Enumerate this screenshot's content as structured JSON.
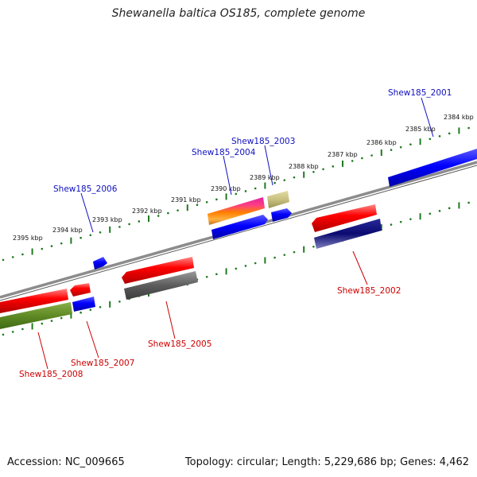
{
  "title": "Shewanella baltica OS185, complete genome",
  "footer": {
    "accession": "Accession: NC_009665",
    "summary": "Topology: circular; Length: 5,229,686 bp; Genes: 4,462"
  },
  "colors": {
    "backbone": "#8c8c8c",
    "tick": "#1f7a1f",
    "forward_label": "#1010c0",
    "reverse_label": "#cc0000"
  },
  "tick_labels": [
    "2384 kbp",
    "2385 kbp",
    "2386 kbp",
    "2387 kbp",
    "2388 kbp",
    "2389 kbp",
    "2390 kbp",
    "2391 kbp",
    "2392 kbp",
    "2393 kbp",
    "2394 kbp",
    "2395 kbp"
  ],
  "gene_labels": [
    {
      "text": "Shew185_2001",
      "strand": "forward"
    },
    {
      "text": "Shew185_2003",
      "strand": "forward"
    },
    {
      "text": "Shew185_2004",
      "strand": "forward"
    },
    {
      "text": "Shew185_2006",
      "strand": "forward"
    },
    {
      "text": "Shew185_2002",
      "strand": "reverse"
    },
    {
      "text": "Shew185_2005",
      "strand": "reverse"
    },
    {
      "text": "Shew185_2007",
      "strand": "reverse"
    },
    {
      "text": "Shew185_2008",
      "strand": "reverse"
    }
  ]
}
